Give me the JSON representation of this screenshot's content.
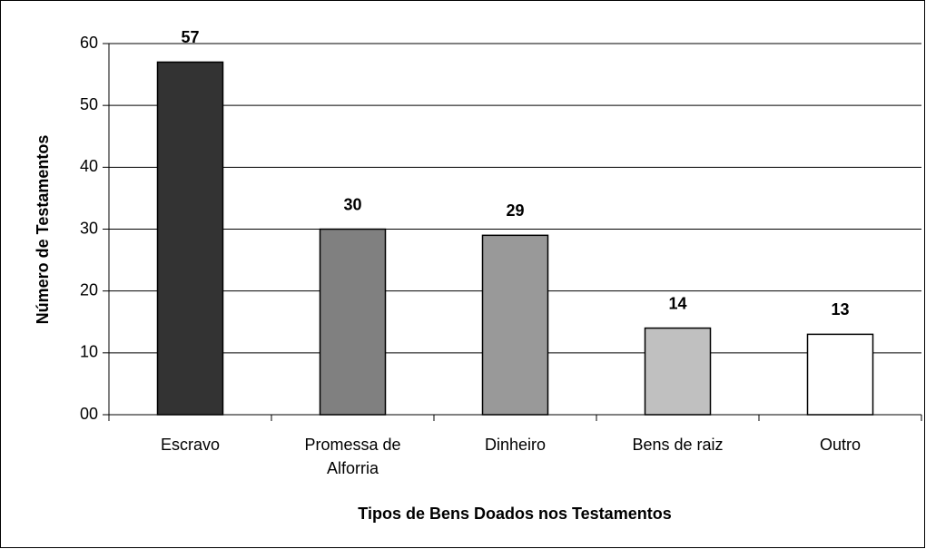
{
  "chart_data": {
    "type": "bar",
    "x_label": "Tipos de Bens Doados nos Testamentos",
    "y_label": "Número de Testamentos",
    "categories": [
      "Escravo",
      "Promessa de Alforria",
      "Dinheiro",
      "Bens de raiz",
      "Outro"
    ],
    "values": [
      57,
      30,
      29,
      14,
      13
    ],
    "colors": [
      "#333333",
      "#808080",
      "#999999",
      "#c0c0c0",
      "#ffffff"
    ],
    "ylim": [
      0,
      60
    ],
    "yticks": [
      {
        "value": 0,
        "label": "00"
      },
      10,
      20,
      30,
      40,
      50,
      60
    ],
    "grid": true
  }
}
